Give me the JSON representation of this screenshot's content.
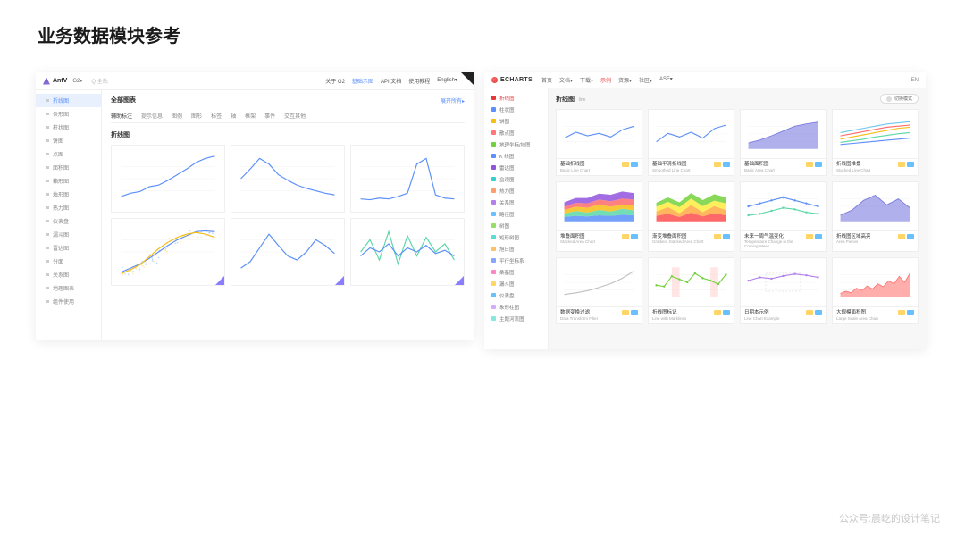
{
  "page_title": "业务数据模块参考",
  "watermark": "公众号:晨屹的设计笔记",
  "colors": {
    "accent_antv": "#5b8ff9",
    "accent_ec": "#e43a3a",
    "grid": "#eeeeee"
  },
  "antv": {
    "logo": "AntV",
    "product": "G2▾",
    "search_placeholder": "Q 全站",
    "nav": [
      "关于 G2",
      "基础示图",
      "API 文档",
      "使用教程",
      "English▾"
    ],
    "nav_active_index": 1,
    "sidebar": [
      "折线图",
      "条形图",
      "柱状图",
      "饼图",
      "点图",
      "面积图",
      "箱形图",
      "烛形图",
      "热力图",
      "仪表盘",
      "漏斗图",
      "雷达图",
      "分面",
      "关系图",
      "地理图表",
      "组件使用"
    ],
    "sidebar_active_index": 0,
    "main_title": "全部图表",
    "main_link": "展开所有▸",
    "tabs": [
      "辅助标注",
      "提示信息",
      "图例",
      "图形",
      "标签",
      "轴",
      "框架",
      "事件",
      "交互其他"
    ],
    "section_title": "折线图",
    "charts": [
      {
        "type": "line",
        "series": [
          [
            8,
            12,
            14,
            20,
            22,
            28,
            35,
            42,
            50,
            55,
            58
          ]
        ],
        "colors": [
          "#5b8ff9"
        ],
        "ylim": [
          0,
          60
        ]
      },
      {
        "type": "line",
        "series": [
          [
            30,
            42,
            55,
            48,
            35,
            28,
            22,
            18,
            15,
            12,
            10
          ]
        ],
        "colors": [
          "#5b8ff9"
        ],
        "ylim": [
          0,
          60
        ],
        "smooth": true
      },
      {
        "type": "line",
        "series": [
          [
            5,
            4,
            6,
            5,
            8,
            12,
            48,
            55,
            10,
            6,
            5
          ]
        ],
        "colors": [
          "#5b8ff9"
        ],
        "ylim": [
          0,
          60
        ]
      },
      {
        "type": "scatter-line",
        "series": [
          [
            5,
            10,
            15,
            22,
            30,
            38,
            45,
            50,
            55,
            56,
            55
          ],
          [
            3,
            8,
            14,
            24,
            34,
            42,
            48,
            52,
            54,
            52,
            48
          ]
        ],
        "colors": [
          "#5b8ff9",
          "#f6bd16"
        ],
        "ylim": [
          0,
          60
        ],
        "scatter": true,
        "badge": true
      },
      {
        "type": "line",
        "series": [
          [
            10,
            18,
            35,
            52,
            38,
            25,
            20,
            30,
            45,
            38,
            28
          ]
        ],
        "colors": [
          "#5b8ff9"
        ],
        "ylim": [
          0,
          60
        ],
        "smooth": true,
        "badge": true
      },
      {
        "type": "multiline",
        "series": [
          [
            30,
            45,
            20,
            55,
            15,
            50,
            25,
            48,
            30,
            40,
            20
          ],
          [
            25,
            35,
            30,
            40,
            25,
            35,
            30,
            38,
            28,
            32,
            25
          ]
        ],
        "colors": [
          "#5ad8a6",
          "#5b8ff9"
        ],
        "ylim": [
          0,
          60
        ],
        "badge": true
      }
    ]
  },
  "echarts": {
    "logo": "ECHARTS",
    "nav": [
      "首页",
      "文档▾",
      "下载▾",
      "示例",
      "资源▾",
      "社区▾",
      "ASF▾"
    ],
    "nav_active_index": 3,
    "lang": "EN",
    "sidebar": [
      {
        "label": "折线图",
        "color": "#e43a3a",
        "active": true
      },
      {
        "label": "柱状图",
        "color": "#5b8ff9"
      },
      {
        "label": "饼图",
        "color": "#f6bd16"
      },
      {
        "label": "散点图",
        "color": "#ff7875"
      },
      {
        "label": "地理坐标/地图",
        "color": "#73d13d"
      },
      {
        "label": "K 线图",
        "color": "#5b8ff9"
      },
      {
        "label": "雷达图",
        "color": "#9254de"
      },
      {
        "label": "盒须图",
        "color": "#36cfc9"
      },
      {
        "label": "热力图",
        "color": "#ff9c6e"
      },
      {
        "label": "关系图",
        "color": "#b37feb"
      },
      {
        "label": "路径图",
        "color": "#69c0ff"
      },
      {
        "label": "树图",
        "color": "#95de64"
      },
      {
        "label": "矩形树图",
        "color": "#5cdbd3"
      },
      {
        "label": "旭日图",
        "color": "#ffc069"
      },
      {
        "label": "平行坐标系",
        "color": "#85a5ff"
      },
      {
        "label": "桑基图",
        "color": "#ff85c0"
      },
      {
        "label": "漏斗图",
        "color": "#ffd666"
      },
      {
        "label": "仪表盘",
        "color": "#69c0ff"
      },
      {
        "label": "象形柱图",
        "color": "#d3adf7"
      },
      {
        "label": "主题河流图",
        "color": "#87e8de"
      }
    ],
    "main_title": "折线图",
    "main_sub": "line",
    "toggle_label": "切换模式",
    "cards": [
      {
        "title": "基础折线图",
        "sub": "Basic Line Chart",
        "type": "line",
        "series": [
          [
            18,
            28,
            22,
            26,
            20,
            32,
            38
          ]
        ],
        "colors": [
          "#5b8ff9"
        ],
        "ylim": [
          0,
          50
        ]
      },
      {
        "title": "基础平滑折线图",
        "sub": "Smoothed Line Chart",
        "type": "line",
        "series": [
          [
            12,
            26,
            20,
            28,
            18,
            34,
            40
          ]
        ],
        "colors": [
          "#5b8ff9"
        ],
        "ylim": [
          0,
          50
        ],
        "smooth": true
      },
      {
        "title": "基础面积图",
        "sub": "Basic Area Chart",
        "type": "area",
        "series": [
          [
            10,
            15,
            22,
            30,
            38,
            42,
            45
          ]
        ],
        "colors": [
          "#7c7ce0"
        ],
        "ylim": [
          0,
          50
        ]
      },
      {
        "title": "折线图堆叠",
        "sub": "Stacked Line Chart",
        "type": "multiline",
        "series": [
          [
            8,
            10,
            12,
            14,
            16,
            18,
            20
          ],
          [
            12,
            15,
            18,
            22,
            25,
            28,
            30
          ],
          [
            18,
            22,
            26,
            30,
            34,
            38,
            40
          ],
          [
            24,
            28,
            32,
            36,
            40,
            42,
            44
          ],
          [
            30,
            34,
            38,
            42,
            46,
            48,
            50
          ]
        ],
        "colors": [
          "#5b8ff9",
          "#5ad8a6",
          "#f6bd16",
          "#ff6a6a",
          "#6dc8ec"
        ],
        "ylim": [
          0,
          55
        ]
      },
      {
        "title": "堆叠面积图",
        "sub": "Stacked Area Chart",
        "type": "stacked-area",
        "series": [
          [
            8,
            10,
            9,
            11,
            10,
            12,
            11
          ],
          [
            6,
            9,
            7,
            10,
            8,
            11,
            9
          ],
          [
            7,
            8,
            9,
            10,
            9,
            8,
            10
          ],
          [
            6,
            7,
            8,
            9,
            10,
            11,
            10
          ],
          [
            8,
            9,
            10,
            11,
            12,
            13,
            12
          ]
        ],
        "colors": [
          "#5b8ff9",
          "#5ad8a6",
          "#f6bd16",
          "#ff6a6a",
          "#9254de"
        ],
        "ylim": [
          0,
          55
        ]
      },
      {
        "title": "渐变堆叠面积图",
        "sub": "Gradient Stacked Area Chart",
        "type": "stacked-area",
        "series": [
          [
            10,
            14,
            8,
            16,
            9,
            15,
            11
          ],
          [
            8,
            12,
            7,
            14,
            8,
            13,
            10
          ],
          [
            9,
            10,
            11,
            12,
            11,
            10,
            12
          ],
          [
            7,
            8,
            9,
            10,
            11,
            12,
            11
          ]
        ],
        "colors": [
          "#ff4d4f",
          "#ffa940",
          "#ffec3d",
          "#73d13d"
        ],
        "ylim": [
          0,
          55
        ],
        "smooth": true
      },
      {
        "title": "未来一周气温变化",
        "sub": "Temperature Change in the Coming Week",
        "type": "line-markers",
        "series": [
          [
            10,
            12,
            14,
            16,
            14,
            12,
            10
          ],
          [
            4,
            5,
            7,
            9,
            8,
            6,
            5
          ]
        ],
        "colors": [
          "#5b8ff9",
          "#5ad8a6"
        ],
        "ylim": [
          0,
          20
        ]
      },
      {
        "title": "折线图区域高亮",
        "sub": "Area Pieces",
        "type": "area-pieces",
        "series": [
          [
            8,
            15,
            28,
            35,
            22,
            30,
            18
          ]
        ],
        "colors": [
          "#7c7ce0"
        ],
        "ylim": [
          0,
          40
        ]
      },
      {
        "title": "数据变换过滤",
        "sub": "Data Transform Filter",
        "type": "line",
        "series": [
          [
            5,
            8,
            12,
            18,
            25,
            35,
            48
          ]
        ],
        "colors": [
          "#bfbfbf"
        ],
        "ylim": [
          0,
          55
        ]
      },
      {
        "title": "折线图标记",
        "sub": "Line with Marklines",
        "type": "line-band",
        "series": [
          [
            20,
            18,
            35,
            30,
            25,
            40,
            32,
            28,
            22,
            38
          ]
        ],
        "colors": [
          "#73d13d"
        ],
        "ylim": [
          0,
          50
        ],
        "bands": [
          [
            2,
            3
          ],
          [
            7,
            8
          ]
        ]
      },
      {
        "title": "日期本示例",
        "sub": "Line Chart Example",
        "type": "line-box",
        "series": [
          [
            25,
            30,
            28,
            32,
            35,
            33,
            30
          ]
        ],
        "colors": [
          "#b37feb"
        ],
        "ylim": [
          0,
          45
        ],
        "box": true
      },
      {
        "title": "大规模面积图",
        "sub": "Large Scale Area Chart",
        "type": "area",
        "series": [
          [
            5,
            8,
            6,
            12,
            9,
            15,
            11,
            18,
            14,
            22,
            18,
            28,
            20,
            32
          ]
        ],
        "colors": [
          "#ff7875"
        ],
        "ylim": [
          0,
          40
        ]
      }
    ]
  }
}
